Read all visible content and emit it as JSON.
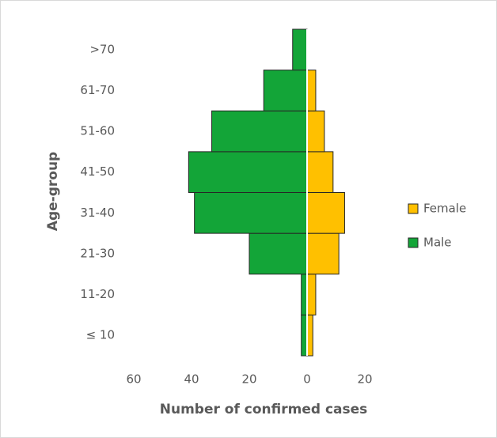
{
  "chart_data": {
    "type": "pyramid",
    "x_label": "Number of confirmed cases",
    "y_label": "Age-group",
    "categories": [
      "≤ 10",
      "11-20",
      "21-30",
      "31-40",
      "41-50",
      "51-60",
      "61-70",
      ">70"
    ],
    "series": [
      {
        "name": "Female",
        "color": "#ffc000",
        "values": [
          2,
          3,
          11,
          13,
          9,
          6,
          3,
          0
        ]
      },
      {
        "name": "Male",
        "color": "#13a538",
        "values": [
          -2,
          -2,
          -20,
          -39,
          -41,
          -33,
          -15,
          -5
        ]
      }
    ],
    "xlim": [
      -60,
      20
    ],
    "xticks": [
      {
        "value": -60,
        "label": "60"
      },
      {
        "value": -40,
        "label": "40"
      },
      {
        "value": -20,
        "label": "20"
      },
      0,
      20
    ],
    "legend": "right"
  }
}
